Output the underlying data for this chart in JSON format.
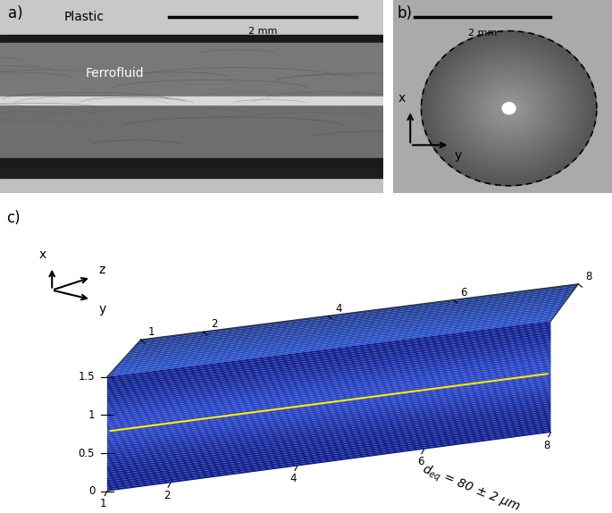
{
  "fig_width": 6.85,
  "fig_height": 5.74,
  "bg_color": "#ffffff",
  "panel_a": {
    "label": "a)",
    "scale_bar_label": "2 mm",
    "plastic_label": "Plastic",
    "ferrofluid_label": "Ferrofluid",
    "plastic_top_color": "#c8c8c8",
    "plastic_bot_color": "#c0c0c0",
    "ferrofluid_upper_color": "#787878",
    "ferrofluid_lower_color": "#6a6a6a",
    "dark_band_color": "#1c1c1c",
    "bright_line_color": "#e0e0e0",
    "dot_band_color": "#282828"
  },
  "panel_b": {
    "label": "b)",
    "scale_bar_label": "2 mm",
    "bg_color": "#aaaaaa",
    "circle_outer_color": "#787878",
    "circle_inner_color": "#b0b0b0",
    "bright_spot_color": "#ffffff"
  },
  "panel_c": {
    "label": "c)",
    "annotation": "d$_{eq}$ = 80 ± 2 μm",
    "tube_color_front_dark": "#0d2070",
    "tube_color_front_mid": "#1a3aaa",
    "tube_color_front_light": "#2850c8",
    "tube_color_top": "#3a6add",
    "yellow_line_color": "#ffe800",
    "frame_color": "#444444",
    "tick_label_fontsize": 8.5
  }
}
